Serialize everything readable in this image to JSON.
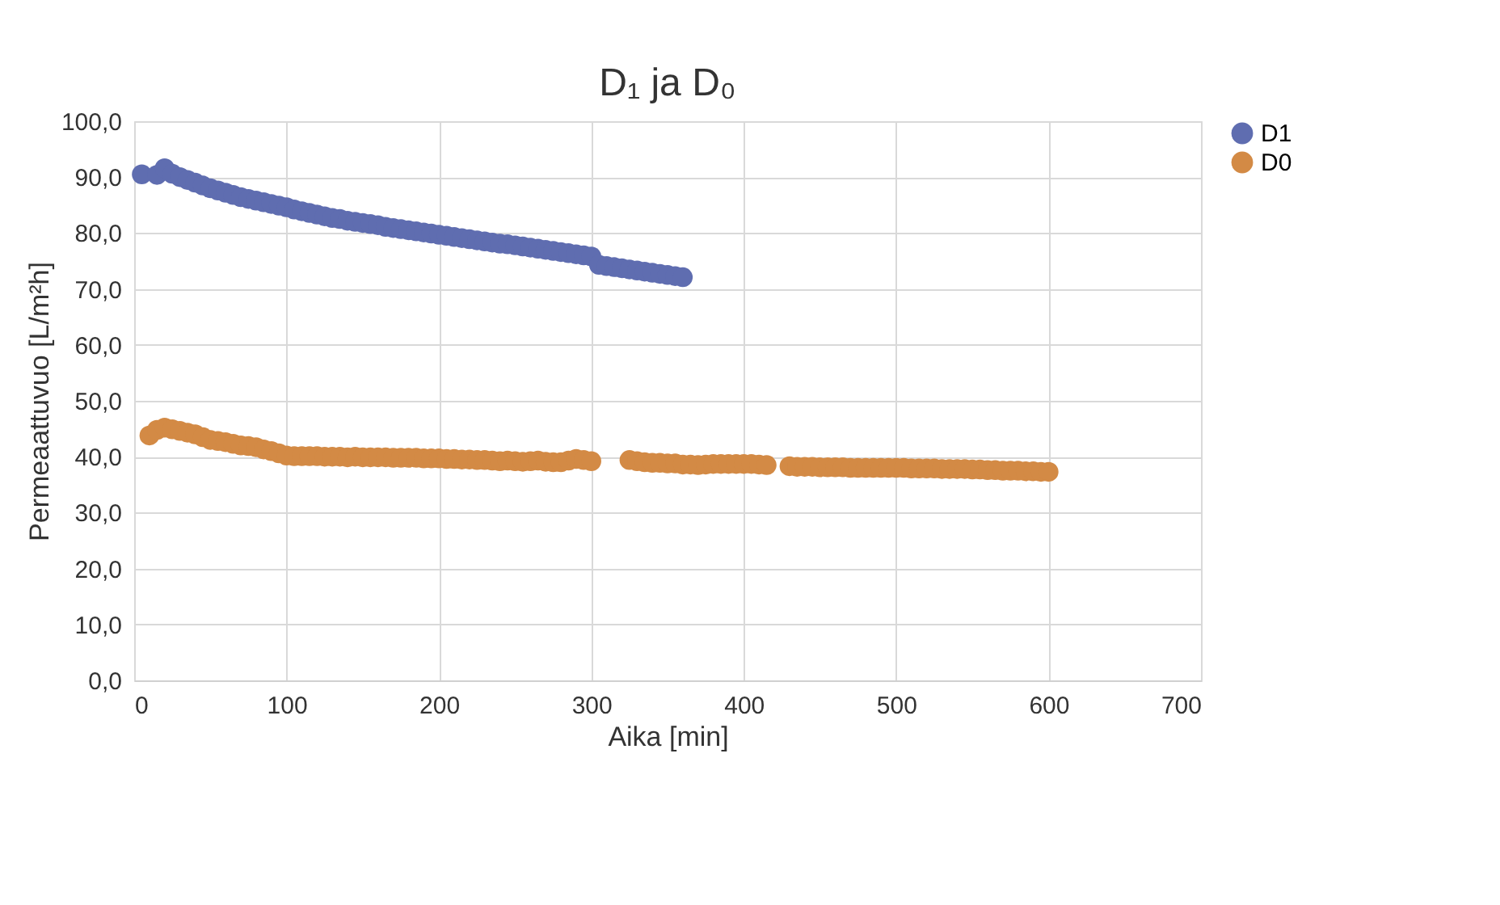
{
  "chart_data": {
    "type": "scatter",
    "title": "D₁ ja D₀",
    "xlabel": "Aika [min]",
    "ylabel": "Permeaattuvuo [L/m²h]",
    "xlim": [
      0,
      700
    ],
    "xticks": [
      0,
      100,
      200,
      300,
      400,
      500,
      600,
      700
    ],
    "ylim": [
      0,
      100
    ],
    "yticks": [
      {
        "value": 0,
        "label": "0,0"
      },
      {
        "value": 10,
        "label": "10,0"
      },
      {
        "value": 20,
        "label": "20,0"
      },
      {
        "value": 30,
        "label": "30,0"
      },
      {
        "value": 40,
        "label": "40,0"
      },
      {
        "value": 50,
        "label": "50,0"
      },
      {
        "value": 60,
        "label": "60,0"
      },
      {
        "value": 70,
        "label": "70,0"
      },
      {
        "value": 80,
        "label": "80,0"
      },
      {
        "value": 90,
        "label": "90,0"
      },
      {
        "value": 100,
        "label": "100,0"
      }
    ],
    "grid": true,
    "legend": "right",
    "marker": "circle",
    "series": [
      {
        "name": "D1",
        "color": "#5f6db0",
        "x": [
          5,
          15,
          20,
          25,
          30,
          35,
          40,
          45,
          50,
          55,
          60,
          65,
          70,
          75,
          80,
          85,
          90,
          95,
          100,
          105,
          110,
          115,
          120,
          125,
          130,
          135,
          140,
          145,
          150,
          155,
          160,
          165,
          170,
          175,
          180,
          185,
          190,
          195,
          200,
          205,
          210,
          215,
          220,
          225,
          230,
          235,
          240,
          245,
          250,
          255,
          260,
          265,
          270,
          275,
          280,
          285,
          290,
          295,
          300,
          305,
          310,
          315,
          320,
          325,
          330,
          335,
          340,
          345,
          350,
          355,
          360
        ],
        "values": [
          90.5,
          90.4,
          91.6,
          90.6,
          90.0,
          89.5,
          89.0,
          88.5,
          88.0,
          87.6,
          87.2,
          86.8,
          86.4,
          86.1,
          85.8,
          85.5,
          85.2,
          84.9,
          84.6,
          84.2,
          83.9,
          83.6,
          83.3,
          83.0,
          82.7,
          82.5,
          82.2,
          82.0,
          81.8,
          81.6,
          81.4,
          81.1,
          80.9,
          80.7,
          80.5,
          80.3,
          80.1,
          79.9,
          79.7,
          79.5,
          79.3,
          79.1,
          78.9,
          78.7,
          78.5,
          78.3,
          78.1,
          78.0,
          77.8,
          77.6,
          77.4,
          77.2,
          77.0,
          76.8,
          76.6,
          76.4,
          76.2,
          76.0,
          75.8,
          74.3,
          74.1,
          73.9,
          73.7,
          73.5,
          73.3,
          73.1,
          72.9,
          72.7,
          72.5,
          72.3,
          72.1
        ]
      },
      {
        "name": "D0",
        "color": "#d38a45",
        "x": [
          10,
          15,
          20,
          25,
          30,
          35,
          40,
          45,
          50,
          55,
          60,
          65,
          70,
          75,
          80,
          85,
          90,
          95,
          100,
          105,
          110,
          115,
          120,
          125,
          130,
          135,
          140,
          145,
          150,
          155,
          160,
          165,
          170,
          175,
          180,
          185,
          190,
          195,
          200,
          205,
          210,
          215,
          220,
          225,
          230,
          235,
          240,
          245,
          250,
          255,
          260,
          265,
          270,
          275,
          280,
          285,
          290,
          295,
          300,
          325,
          330,
          335,
          340,
          345,
          350,
          355,
          360,
          365,
          370,
          375,
          380,
          385,
          390,
          395,
          400,
          405,
          410,
          415,
          430,
          435,
          440,
          445,
          450,
          455,
          460,
          465,
          470,
          475,
          480,
          485,
          490,
          495,
          500,
          505,
          510,
          515,
          520,
          525,
          530,
          535,
          540,
          545,
          550,
          555,
          560,
          565,
          570,
          575,
          580,
          585,
          590,
          595,
          600
        ],
        "values": [
          43.8,
          44.8,
          45.2,
          44.9,
          44.6,
          44.3,
          44.0,
          43.5,
          43.0,
          42.8,
          42.6,
          42.3,
          42.0,
          41.9,
          41.7,
          41.3,
          41.0,
          40.6,
          40.2,
          40.1,
          40.1,
          40.1,
          40.1,
          40.0,
          40.0,
          40.0,
          39.9,
          40.0,
          39.9,
          39.9,
          39.9,
          39.9,
          39.8,
          39.8,
          39.8,
          39.8,
          39.7,
          39.7,
          39.7,
          39.6,
          39.6,
          39.5,
          39.5,
          39.4,
          39.4,
          39.3,
          39.2,
          39.3,
          39.2,
          39.1,
          39.2,
          39.3,
          39.1,
          39.0,
          39.0,
          39.3,
          39.6,
          39.4,
          39.2,
          39.4,
          39.2,
          39.0,
          38.9,
          38.9,
          38.8,
          38.8,
          38.6,
          38.6,
          38.5,
          38.6,
          38.7,
          38.7,
          38.7,
          38.7,
          38.7,
          38.7,
          38.6,
          38.5,
          38.3,
          38.2,
          38.2,
          38.2,
          38.1,
          38.1,
          38.1,
          38.1,
          38.0,
          38.0,
          38.0,
          38.0,
          38.0,
          38.0,
          38.0,
          38.0,
          37.9,
          37.9,
          37.9,
          37.9,
          37.8,
          37.8,
          37.8,
          37.8,
          37.7,
          37.7,
          37.6,
          37.6,
          37.5,
          37.5,
          37.5,
          37.4,
          37.4,
          37.3,
          37.3
        ]
      }
    ]
  }
}
